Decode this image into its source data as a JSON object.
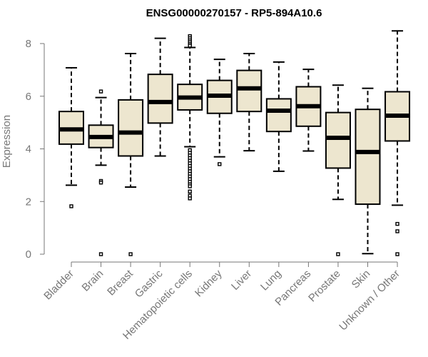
{
  "chart_data": {
    "type": "boxplot",
    "title": "ENSG00000270157 - RP5-894A10.6",
    "xlabel": "",
    "ylabel": "Expression",
    "ylim": [
      0,
      8.5
    ],
    "yticks": [
      0,
      2,
      4,
      6,
      8
    ],
    "categories": [
      "Bladder",
      "Brain",
      "Breast",
      "Gastric",
      "Hematopoietic cells",
      "Kidney",
      "Liver",
      "Lung",
      "Pancreas",
      "Prostate",
      "Skin",
      "Unknown / Other"
    ],
    "fill_color": "#ede6cf",
    "boxes": [
      {
        "category": "Bladder",
        "whisker_low": 2.62,
        "q1": 4.18,
        "median": 4.74,
        "q3": 5.42,
        "whisker_high": 7.08,
        "outliers": [
          1.82
        ]
      },
      {
        "category": "Brain",
        "whisker_low": 3.38,
        "q1": 4.05,
        "median": 4.45,
        "q3": 4.9,
        "whisker_high": 5.95,
        "outliers": [
          6.18,
          2.78,
          2.72,
          0.0
        ]
      },
      {
        "category": "Breast",
        "whisker_low": 2.55,
        "q1": 3.73,
        "median": 4.62,
        "q3": 5.86,
        "whisker_high": 7.62,
        "outliers": [
          0.0
        ]
      },
      {
        "category": "Gastric",
        "whisker_low": 3.73,
        "q1": 4.98,
        "median": 5.78,
        "q3": 6.83,
        "whisker_high": 8.2,
        "outliers": []
      },
      {
        "category": "Hematopoietic cells",
        "whisker_low": 4.08,
        "q1": 5.48,
        "median": 5.95,
        "q3": 6.45,
        "whisker_high": 7.85,
        "outliers": [
          8.28,
          8.2,
          8.12,
          8.05,
          7.98,
          7.92,
          3.95,
          3.85,
          3.75,
          3.65,
          3.55,
          3.45,
          3.35,
          3.25,
          3.15,
          3.05,
          2.95,
          2.85,
          2.75,
          2.65,
          2.58,
          2.38,
          2.22,
          2.12
        ]
      },
      {
        "category": "Kidney",
        "whisker_low": 3.7,
        "q1": 5.35,
        "median": 6.02,
        "q3": 6.6,
        "whisker_high": 7.4,
        "outliers": [
          3.42
        ]
      },
      {
        "category": "Liver",
        "whisker_low": 3.93,
        "q1": 5.42,
        "median": 6.3,
        "q3": 6.98,
        "whisker_high": 7.62,
        "outliers": []
      },
      {
        "category": "Lung",
        "whisker_low": 3.15,
        "q1": 4.66,
        "median": 5.45,
        "q3": 5.9,
        "whisker_high": 7.3,
        "outliers": []
      },
      {
        "category": "Pancreas",
        "whisker_low": 3.92,
        "q1": 4.86,
        "median": 5.62,
        "q3": 6.36,
        "whisker_high": 7.02,
        "outliers": []
      },
      {
        "category": "Prostate",
        "whisker_low": 2.08,
        "q1": 3.27,
        "median": 4.42,
        "q3": 5.38,
        "whisker_high": 6.42,
        "outliers": [
          0.0
        ]
      },
      {
        "category": "Skin",
        "whisker_low": 0.02,
        "q1": 1.9,
        "median": 3.88,
        "q3": 5.5,
        "whisker_high": 6.3,
        "outliers": []
      },
      {
        "category": "Unknown / Other",
        "whisker_low": 1.86,
        "q1": 4.3,
        "median": 5.26,
        "q3": 6.17,
        "whisker_high": 8.48,
        "outliers": [
          1.15,
          0.87,
          0.0
        ]
      }
    ]
  }
}
